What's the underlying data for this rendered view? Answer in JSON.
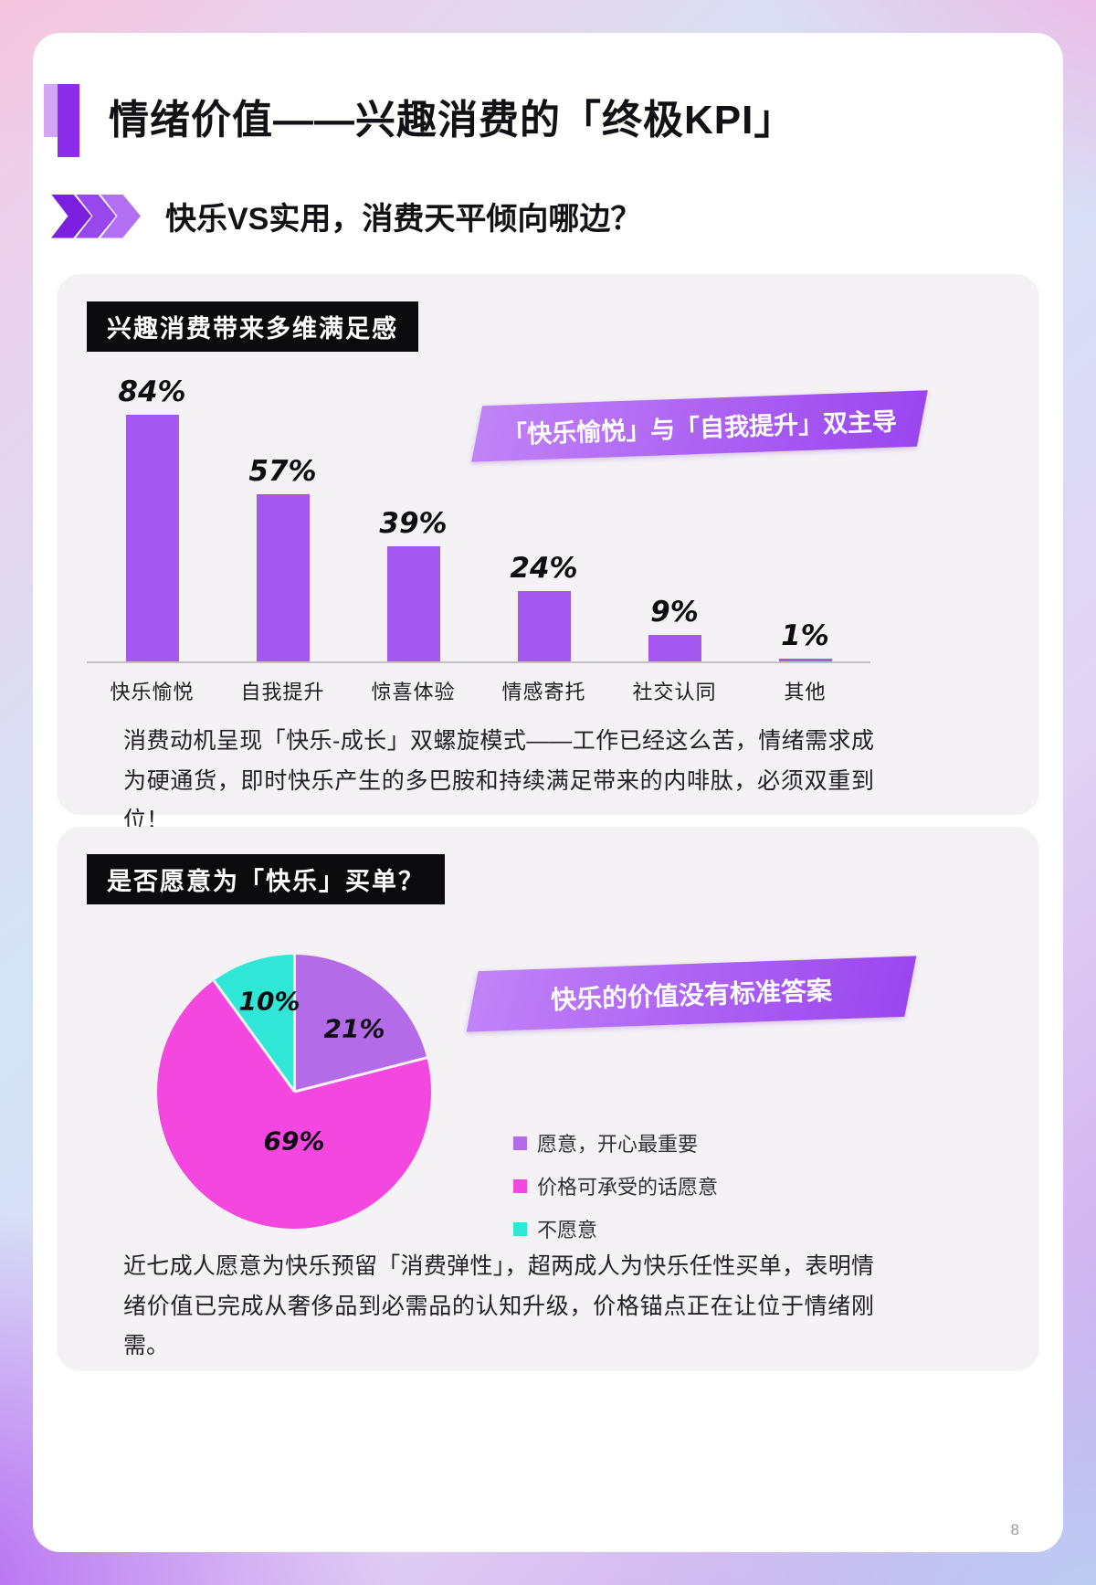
{
  "page": {
    "title": "情绪价值——兴趣消费的「终极KPI」",
    "subtitle": "快乐VS实用，消费天平倾向哪边？",
    "page_number": "8"
  },
  "bar_section": {
    "chart_title": "兴趣消费带来多维满足感",
    "banner": "「快乐愉悦」与「自我提升」双主导",
    "caption": "消费动机呈现「快乐-成长」双螺旋模式——工作已经这么苦，情绪需求成为硬通货，即时快乐产生的多巴胺和持续满足带来的内啡肽，必须双重到位！"
  },
  "pie_section": {
    "chart_title": "是否愿意为「快乐」买单？",
    "banner": "快乐的价值没有标准答案",
    "caption": "近七成人愿意为快乐预留「消费弹性」，超两成人为快乐任性买单，表明情绪价值已完成从奢侈品到必需品的认知升级，价格锚点正在让位于情绪刚需。"
  },
  "chart_data": [
    {
      "type": "bar",
      "title": "兴趣消费带来多维满足感",
      "categories": [
        "快乐愉悦",
        "自我提升",
        "惊喜体验",
        "情感寄托",
        "社交认同",
        "其他"
      ],
      "values": [
        84,
        57,
        39,
        24,
        9,
        1
      ],
      "value_labels": [
        "84%",
        "57%",
        "39%",
        "24%",
        "9%",
        "1%"
      ],
      "unit": "%",
      "ylim": [
        0,
        100
      ],
      "grid": false,
      "bar_color": "#a558f0",
      "annotation": "「快乐愉悦」与「自我提升」双主导"
    },
    {
      "type": "pie",
      "title": "是否愿意为「快乐」买单？",
      "slices": [
        {
          "label": "愿意，开心最重要",
          "value": 21,
          "color": "#b36be8"
        },
        {
          "label": "价格可承受的话愿意",
          "value": 69,
          "color": "#f447e0"
        },
        {
          "label": "不愿意",
          "value": 10,
          "color": "#30e6d6"
        }
      ],
      "legend_position": "right",
      "annotation": "快乐的价值没有标准答案"
    }
  ],
  "colors": {
    "accent_purple": "#8e2cec",
    "banner_purple_light": "#c183f7",
    "banner_purple_dark": "#9a45ef",
    "section_background": "#f4f2f5",
    "chip_background": "#0b0a0d"
  }
}
